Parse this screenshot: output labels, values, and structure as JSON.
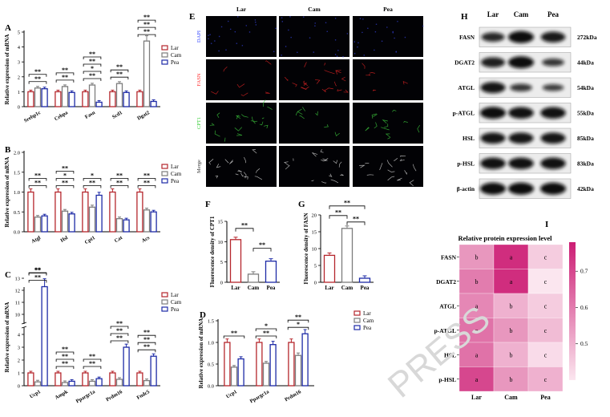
{
  "panel_letters": {
    "A": "A",
    "B": "B",
    "C": "C",
    "D": "D",
    "E": "E",
    "F": "F",
    "G": "G",
    "H": "H",
    "I": "I"
  },
  "colors": {
    "Lar": "#b5262c",
    "Cam": "#7c7c7c",
    "Pea": "#1d2aa6"
  },
  "watermark": "PRESS",
  "legend_groups": [
    "Lar",
    "Cam",
    "Pea"
  ],
  "chart_data": [
    {
      "panel": "A",
      "type": "bar",
      "ylabel": "Relative expression of mRNA",
      "categories": [
        "Srebp1c",
        "Cebpa",
        "Fasn",
        "Scd1",
        "Dgat2"
      ],
      "series": [
        {
          "name": "Lar",
          "values": [
            1.0,
            1.0,
            1.0,
            1.0,
            1.0
          ]
        },
        {
          "name": "Cam",
          "values": [
            1.25,
            1.35,
            1.45,
            1.55,
            4.4
          ]
        },
        {
          "name": "Pea",
          "values": [
            1.2,
            0.95,
            0.3,
            0.95,
            0.35
          ]
        }
      ],
      "yticks": [
        "0",
        "1",
        "2",
        "3",
        "4",
        "5"
      ],
      "ylim": [
        0,
        5
      ],
      "sig": [
        [
          "**",
          "**"
        ],
        [
          "**",
          "**"
        ],
        [
          "**",
          "*",
          "**",
          "**"
        ],
        [
          "**",
          "**"
        ],
        [
          "**",
          "**",
          "**"
        ]
      ]
    },
    {
      "panel": "B",
      "type": "bar",
      "ylabel": "Relative expression of mRNA",
      "categories": [
        "Atgl",
        "Hsl",
        "Cpt1",
        "Cat",
        "Acs"
      ],
      "series": [
        {
          "name": "Lar",
          "values": [
            1.0,
            1.0,
            1.0,
            1.0,
            1.0
          ]
        },
        {
          "name": "Cam",
          "values": [
            0.37,
            0.52,
            0.62,
            0.33,
            0.55
          ]
        },
        {
          "name": "Pea",
          "values": [
            0.4,
            0.45,
            0.92,
            0.3,
            0.5
          ]
        }
      ],
      "yticks": [
        "0.0",
        "0.5",
        "1.0",
        "1.5",
        "2.0"
      ],
      "ylim": [
        0,
        2
      ],
      "sig": [
        [
          "**",
          "**"
        ],
        [
          "**",
          "*",
          "**"
        ],
        [
          "**",
          "*"
        ],
        [
          "**",
          "**"
        ],
        [
          "**",
          "**"
        ]
      ]
    },
    {
      "panel": "C",
      "type": "bar",
      "ylabel": "Relative expression of mRNA",
      "categories": [
        "Ucp1",
        "Ampk",
        "Ppargc1a",
        "Prdm16",
        "Fndc5"
      ],
      "series": [
        {
          "name": "Lar",
          "values": [
            1.0,
            1.0,
            1.0,
            1.0,
            1.0
          ]
        },
        {
          "name": "Cam",
          "values": [
            0.3,
            0.25,
            0.35,
            0.5,
            0.4
          ]
        },
        {
          "name": "Pea",
          "values": [
            12.3,
            0.35,
            0.55,
            3.0,
            2.3
          ]
        }
      ],
      "yticks": [
        "0",
        "1",
        "2",
        "3",
        "4",
        "10",
        "11",
        "12",
        "13"
      ],
      "ylim": [
        0,
        13
      ],
      "sig": [
        [
          "**",
          "**",
          "**"
        ],
        [
          "**",
          "**",
          "**"
        ],
        [
          "**",
          "**"
        ],
        [
          "**",
          "**",
          "**"
        ],
        [
          "**",
          "**",
          "**"
        ]
      ]
    },
    {
      "panel": "D",
      "type": "bar",
      "ylabel": "Relative expression of mRNA",
      "categories": [
        "Ucp1",
        "Ppargc1a",
        "Prdm16"
      ],
      "series": [
        {
          "name": "Lar",
          "values": [
            1.0,
            1.0,
            1.0
          ]
        },
        {
          "name": "Cam",
          "values": [
            0.43,
            0.52,
            0.7
          ]
        },
        {
          "name": "Pea",
          "values": [
            0.62,
            0.95,
            1.2
          ]
        }
      ],
      "yticks": [
        "0.0",
        "0.5",
        "1.0",
        "1.5"
      ],
      "ylim": [
        0,
        1.5
      ],
      "sig": [
        [
          "**"
        ],
        [
          "**",
          "*"
        ],
        [
          "*",
          "**"
        ]
      ]
    },
    {
      "panel": "F",
      "type": "bar",
      "ylabel": "Fluorescence density of CPT1",
      "categories": [
        "Lar",
        "Cam",
        "Pea"
      ],
      "values": [
        10.5,
        2.0,
        5.2
      ],
      "yticks": [
        "0",
        "5",
        "10",
        "15"
      ],
      "ylim": [
        0,
        15
      ],
      "sig": [
        "**",
        "**"
      ]
    },
    {
      "panel": "G",
      "type": "bar",
      "ylabel": "Fluorescence density of FASN",
      "categories": [
        "Lar",
        "Cam",
        "Pea"
      ],
      "values": [
        8.0,
        16.0,
        1.2
      ],
      "yticks": [
        "0",
        "5",
        "10",
        "15",
        "20"
      ],
      "ylim": [
        0,
        20
      ],
      "sig": [
        "**",
        "**",
        "**"
      ]
    },
    {
      "panel": "I",
      "type": "heatmap",
      "title": "Relative protein expression level",
      "rows": [
        "FASN",
        "DGAT2",
        "ATGL",
        "p-ATGL",
        "HSL",
        "p-HSL"
      ],
      "cols": [
        "Lar",
        "Cam",
        "Pea"
      ],
      "values": [
        [
          0.55,
          0.75,
          0.45
        ],
        [
          0.6,
          0.75,
          0.4
        ],
        [
          0.58,
          0.5,
          0.45
        ],
        [
          0.62,
          0.55,
          0.48
        ],
        [
          0.62,
          0.5,
          0.42
        ],
        [
          0.7,
          0.55,
          0.5
        ]
      ],
      "letters": [
        [
          "b",
          "a",
          "c"
        ],
        [
          "b",
          "a",
          "c"
        ],
        [
          "a",
          "b",
          "c"
        ],
        [
          "a",
          "b",
          "c"
        ],
        [
          "a",
          "b",
          "c"
        ],
        [
          "a",
          "b",
          "c"
        ]
      ],
      "colorbar_ticks": [
        "0.7",
        "0.6",
        "0.5"
      ],
      "vrange": [
        0.4,
        0.78
      ]
    }
  ],
  "panel_E": {
    "cols": [
      "Lar",
      "Cam",
      "Pea"
    ],
    "rows": [
      "DAPI",
      "FASN",
      "CPT1",
      "Merge"
    ],
    "row_colors": [
      "#3a4cff",
      "#ff3030",
      "#33cc33",
      "#333333"
    ]
  },
  "panel_H": {
    "cols": [
      "Lar",
      "Cam",
      "Pea"
    ],
    "rows": [
      "FASN",
      "DGAT2",
      "ATGL",
      "p-ATGL",
      "HSL",
      "p-HSL",
      "β-actin"
    ],
    "sizes": [
      "272kDa",
      "44kDa",
      "54kDa",
      "55kDa",
      "85kDa",
      "83kDa",
      "42kDa"
    ]
  }
}
